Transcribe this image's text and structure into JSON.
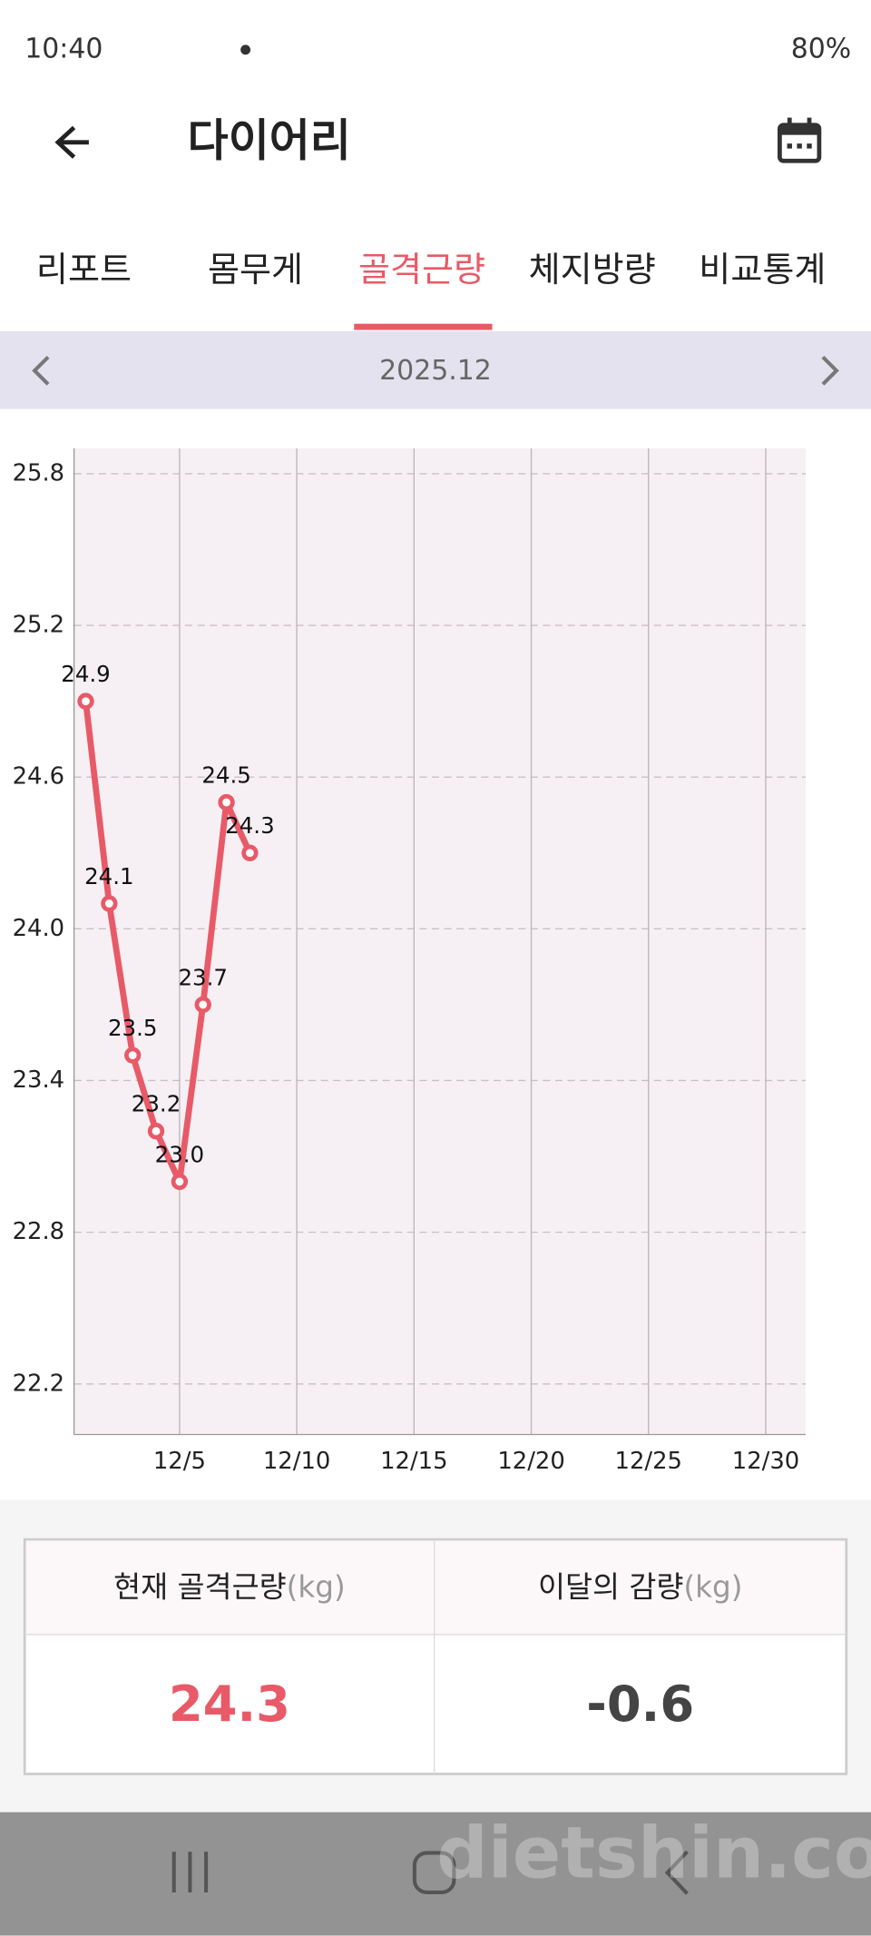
{
  "status_bar": {
    "time": "10:40",
    "battery": "80%"
  },
  "header": {
    "title": "다이어리"
  },
  "tabs": [
    "리포트",
    "몸무게",
    "골격근량",
    "체지방량",
    "비교통계"
  ],
  "month_nav": {
    "label": "2025.12"
  },
  "chart_data": {
    "type": "line",
    "color": "#e85a68",
    "x": [
      1,
      2,
      3,
      4,
      5,
      6,
      7,
      8
    ],
    "values": [
      24.9,
      24.1,
      23.5,
      23.2,
      23.0,
      23.7,
      24.5,
      24.3
    ],
    "value_labels": [
      "24.9",
      "24.1",
      "23.5",
      "23.2",
      "23.0",
      "23.7",
      "24.5",
      "24.3"
    ],
    "xlim": [
      0.5,
      31.7
    ],
    "xticks": [
      {
        "value": 5,
        "label": "12/5"
      },
      {
        "value": 10,
        "label": "12/10"
      },
      {
        "value": 15,
        "label": "12/15"
      },
      {
        "value": 20,
        "label": "12/20"
      },
      {
        "value": 25,
        "label": "12/25"
      },
      {
        "value": 30,
        "label": "12/30"
      }
    ],
    "ylim": [
      22.0,
      25.9
    ],
    "yticks": [
      22.2,
      22.8,
      23.4,
      {
        "value": 24,
        "label": "24.0"
      },
      24.6,
      25.2,
      25.8
    ],
    "grid": true
  },
  "summary": {
    "current_label": "현재 골격근량",
    "current_unit": "(kg)",
    "current_value": "24.3",
    "change_label": "이달의 감량",
    "change_unit": "(kg)",
    "change_value": "-0.6"
  },
  "watermark": "dietshin.com"
}
